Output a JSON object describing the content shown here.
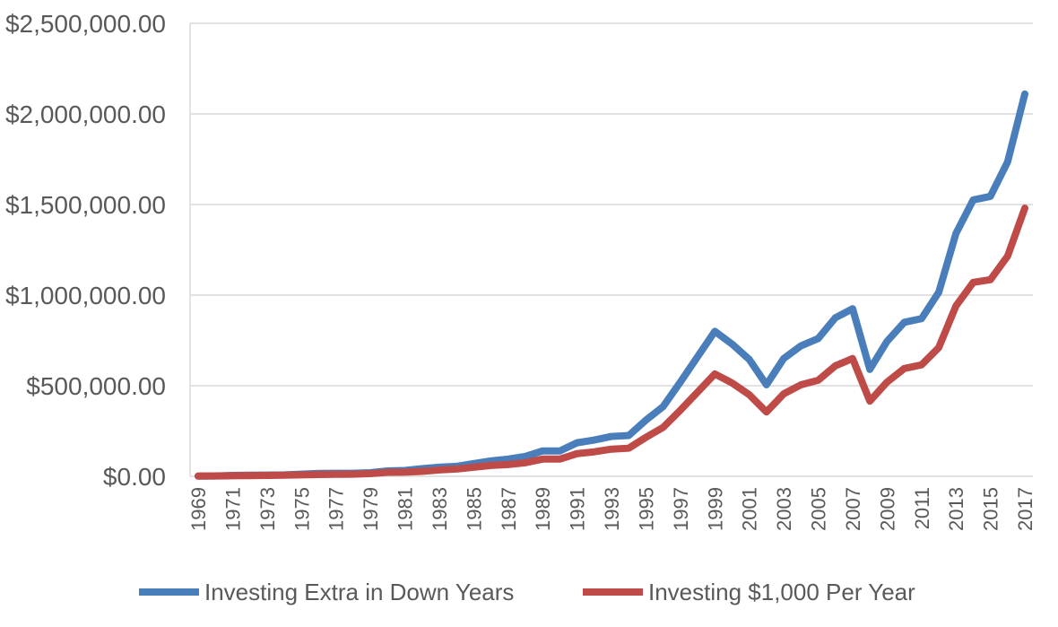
{
  "chart_data": {
    "type": "line",
    "title": "",
    "xlabel": "",
    "ylabel": "",
    "ylim": [
      0,
      2500000
    ],
    "yticks": [
      0,
      500000,
      1000000,
      1500000,
      2000000,
      2500000
    ],
    "ytick_labels": [
      "$0.00",
      "$500,000.00",
      "$1,000,000.00",
      "$1,500,000.00",
      "$2,000,000.00",
      "$2,500,000.00"
    ],
    "grid": true,
    "legend_position": "bottom",
    "x": [
      1969,
      1970,
      1971,
      1972,
      1973,
      1974,
      1975,
      1976,
      1977,
      1978,
      1979,
      1980,
      1981,
      1982,
      1983,
      1984,
      1985,
      1986,
      1987,
      1988,
      1989,
      1990,
      1991,
      1992,
      1993,
      1994,
      1995,
      1996,
      1997,
      1998,
      1999,
      2000,
      2001,
      2002,
      2003,
      2004,
      2005,
      2006,
      2007,
      2008,
      2009,
      2010,
      2011,
      2012,
      2013,
      2014,
      2015,
      2016,
      2017
    ],
    "xtick_labels": [
      "1969",
      "1971",
      "1973",
      "1975",
      "1977",
      "1979",
      "1981",
      "1983",
      "1985",
      "1987",
      "1989",
      "1991",
      "1993",
      "1995",
      "1997",
      "1999",
      "2001",
      "2003",
      "2005",
      "2007",
      "2009",
      "2011",
      "2013",
      "2015",
      "2017"
    ],
    "series": [
      {
        "name": "Investing Extra in Down Years",
        "color": "#4a7ebb",
        "values": [
          1000,
          2000,
          5000,
          6000,
          7000,
          8000,
          12000,
          16000,
          17000,
          17000,
          20000,
          30000,
          32000,
          42000,
          50000,
          55000,
          70000,
          85000,
          95000,
          110000,
          140000,
          140000,
          185000,
          200000,
          220000,
          225000,
          310000,
          385000,
          520000,
          660000,
          800000,
          730000,
          645000,
          505000,
          650000,
          720000,
          760000,
          875000,
          925000,
          590000,
          745000,
          850000,
          870000,
          1015000,
          1340000,
          1525000,
          1545000,
          1735000,
          2110000
        ]
      },
      {
        "name": "Investing $1,000 Per Year",
        "color": "#be4b48",
        "values": [
          1000,
          2000,
          3000,
          4000,
          5000,
          6000,
          8000,
          10000,
          11000,
          12000,
          15000,
          22000,
          23000,
          27000,
          35000,
          40000,
          50000,
          60000,
          65000,
          75000,
          95000,
          95000,
          125000,
          135000,
          150000,
          155000,
          215000,
          270000,
          365000,
          465000,
          565000,
          515000,
          450000,
          355000,
          455000,
          505000,
          530000,
          610000,
          650000,
          415000,
          520000,
          595000,
          615000,
          710000,
          940000,
          1070000,
          1085000,
          1215000,
          1480000
        ]
      }
    ]
  }
}
